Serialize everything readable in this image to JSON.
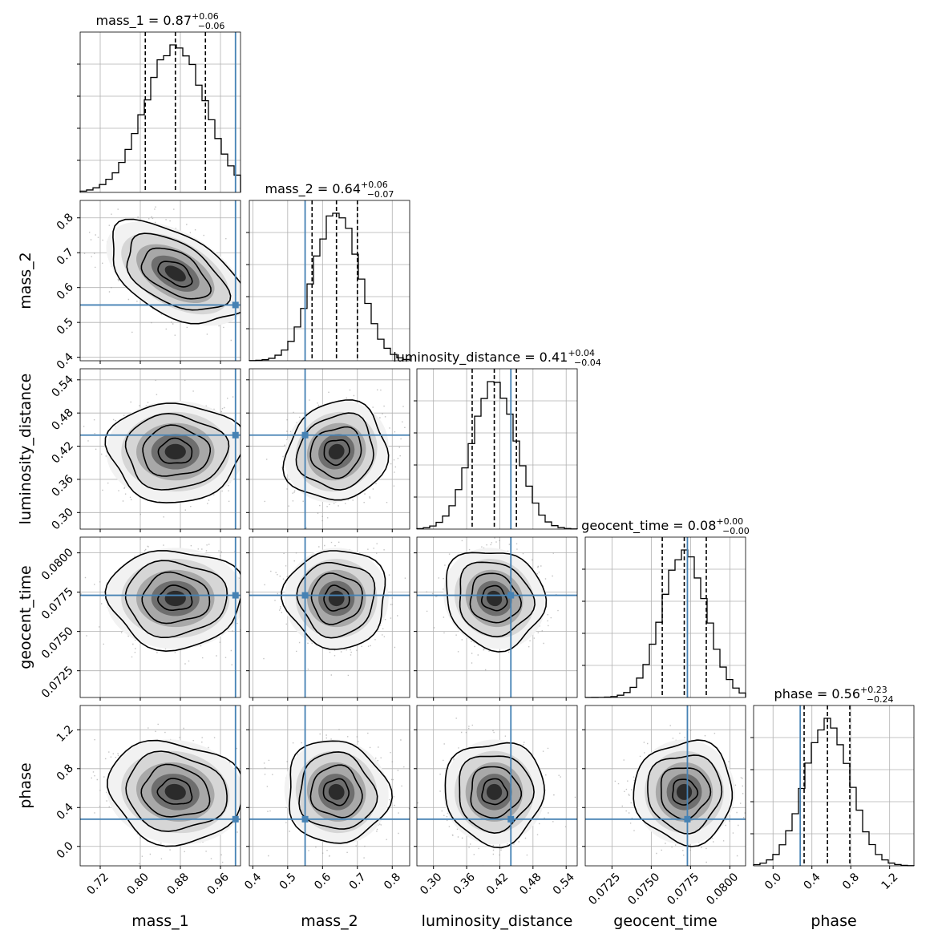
{
  "colors": {
    "truth": "#4682b4",
    "hist": "#000000",
    "grid": "#b0b0b0",
    "density": "#000000",
    "points": "#9a9a9a"
  },
  "chart_data": {
    "type": "corner",
    "parameters": [
      {
        "name": "mass_1",
        "label": "mass_1",
        "title_base": "mass_1 = 0.87",
        "title_plus": "+0.06",
        "title_minus": "−0.06",
        "median": 0.87,
        "q_low": 0.81,
        "q_high": 0.93,
        "truth": 0.99,
        "sigma": 0.06,
        "range": [
          0.68,
          1.0
        ],
        "ticks": [
          0.72,
          0.8,
          0.88,
          0.96
        ],
        "tick_labels": [
          "0.72",
          "0.80",
          "0.88",
          "0.96"
        ]
      },
      {
        "name": "mass_2",
        "label": "mass_2",
        "title_base": "mass_2 = 0.64",
        "title_plus": "+0.06",
        "title_minus": "−0.07",
        "median": 0.64,
        "q_low": 0.57,
        "q_high": 0.7,
        "truth": 0.55,
        "sigma": 0.065,
        "range": [
          0.39,
          0.85
        ],
        "ticks": [
          0.4,
          0.5,
          0.6,
          0.7,
          0.8
        ],
        "tick_labels": [
          "0.4",
          "0.5",
          "0.6",
          "0.7",
          "0.8"
        ]
      },
      {
        "name": "luminosity_distance",
        "label": "luminosity_distance",
        "title_base": "luminosity_distance = 0.41",
        "title_plus": "+0.04",
        "title_minus": "−0.04",
        "median": 0.41,
        "q_low": 0.37,
        "q_high": 0.45,
        "truth": 0.44,
        "sigma": 0.04,
        "range": [
          0.27,
          0.56
        ],
        "ticks": [
          0.3,
          0.36,
          0.42,
          0.48,
          0.54
        ],
        "tick_labels": [
          "0.30",
          "0.36",
          "0.42",
          "0.48",
          "0.54"
        ]
      },
      {
        "name": "geocent_time",
        "label": "geocent_time",
        "title_base": "geocent_time = 0.08",
        "title_plus": "+0.00",
        "title_minus": "−0.00",
        "median": 0.0771,
        "q_low": 0.0757,
        "q_high": 0.0785,
        "truth": 0.0773,
        "sigma": 0.0014,
        "range": [
          0.0708,
          0.081
        ],
        "ticks": [
          0.0725,
          0.075,
          0.0775,
          0.08
        ],
        "tick_labels": [
          "0.0725",
          "0.0750",
          "0.0775",
          "0.0800"
        ]
      },
      {
        "name": "phase",
        "label": "phase",
        "title_base": "phase = 0.56",
        "title_plus": "+0.23",
        "title_minus": "−0.24",
        "median": 0.56,
        "q_low": 0.32,
        "q_high": 0.79,
        "truth": 0.28,
        "sigma": 0.235,
        "range": [
          -0.2,
          1.45
        ],
        "ticks": [
          0.0,
          0.4,
          0.8,
          1.2
        ],
        "tick_labels": [
          "0.0",
          "0.4",
          "0.8",
          "1.2"
        ]
      }
    ],
    "correlations": {
      "0-1": -0.5,
      "0-2": 0.0,
      "0-3": 0.0,
      "0-4": -0.1,
      "1-2": 0.1,
      "1-3": 0.0,
      "1-4": -0.05,
      "2-3": -0.1,
      "2-4": 0.0,
      "3-4": 0.0
    },
    "contour_levels_sigma": [
      0.5,
      1.0,
      1.5,
      2.0
    ],
    "grid": true
  }
}
